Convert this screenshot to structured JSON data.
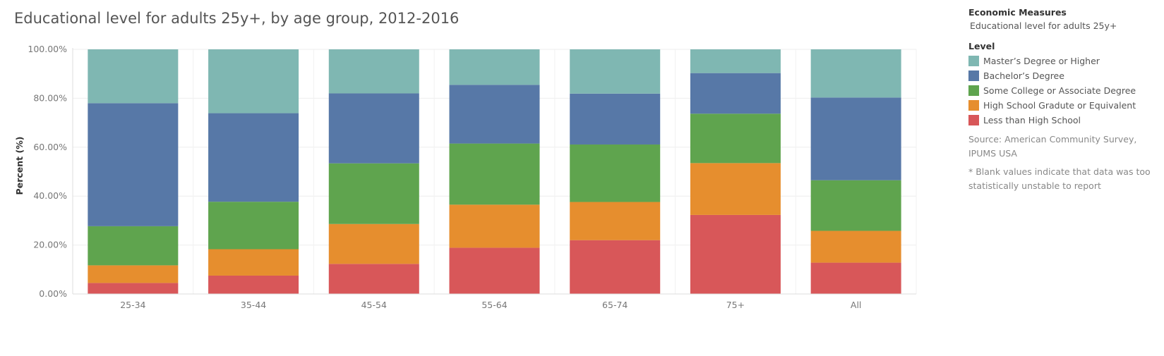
{
  "title": "Educational level for adults 25y+, by age group, 2012-2016",
  "sidebar": {
    "measures_heading": "Economic Measures",
    "measures_value": "Educational level for adults 25y+",
    "legend_heading": "Level",
    "legend": [
      {
        "label": "Master’s Degree or Higher",
        "color": "#7fb7b2"
      },
      {
        "label": "Bachelor’s Degree",
        "color": "#5778a7"
      },
      {
        "label": "Some College or Associate Degree",
        "color": "#5fa44e"
      },
      {
        "label": "High School Gradute or Equivalent",
        "color": "#e68e2e"
      },
      {
        "label": "Less than High School",
        "color": "#d85759"
      }
    ],
    "source": "Source: American Community Survey, IPUMS USA",
    "note": "* Blank values indicate that data was too statistically unstable to report"
  },
  "chart_data": {
    "type": "bar",
    "stacked": true,
    "title": "Educational level for adults 25y+, by age group, 2012-2016",
    "xlabel": "",
    "ylabel": "Percent (%)",
    "ylim": [
      0,
      100
    ],
    "yticks": [
      "0.00%",
      "20.00%",
      "40.00%",
      "60.00%",
      "80.00%",
      "100.00%"
    ],
    "categories": [
      "25-34",
      "35-44",
      "45-54",
      "55-64",
      "65-74",
      "75+",
      "All"
    ],
    "series": [
      {
        "name": "Less than High School",
        "color": "#d85759",
        "values": [
          4.5,
          7.5,
          12.3,
          18.9,
          22.0,
          32.3,
          12.8
        ]
      },
      {
        "name": "High School Gradute or Equivalent",
        "color": "#e68e2e",
        "values": [
          7.2,
          10.8,
          16.3,
          17.6,
          15.6,
          21.2,
          13.0
        ]
      },
      {
        "name": "Some College or Associate Degree",
        "color": "#5fa44e",
        "values": [
          16.0,
          19.4,
          24.8,
          25.0,
          23.5,
          20.2,
          20.7
        ]
      },
      {
        "name": "Bachelor’s Degree",
        "color": "#5778a7",
        "values": [
          50.3,
          36.2,
          28.6,
          24.0,
          20.8,
          16.6,
          33.8
        ]
      },
      {
        "name": "Master’s Degree or Higher",
        "color": "#7fb7b2",
        "values": [
          22.0,
          26.1,
          18.0,
          14.5,
          18.1,
          9.7,
          19.7
        ]
      }
    ],
    "grid": true,
    "legend_position": "right"
  }
}
